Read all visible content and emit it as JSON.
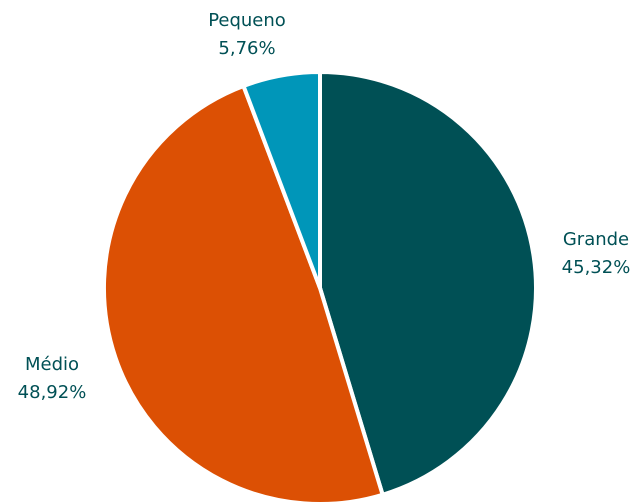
{
  "chart_data": {
    "type": "pie",
    "title": "",
    "categories": [
      "Grande",
      "Médio",
      "Pequeno"
    ],
    "values": [
      45.32,
      48.92,
      5.76
    ],
    "value_labels": [
      "45,32%",
      "48,92%",
      "5,76%"
    ],
    "colors": [
      "#005055",
      "#dc5004",
      "#0096b9"
    ],
    "label_color": "#005055",
    "start_angle_deg": 0,
    "direction": "clockwise",
    "legend": "none"
  }
}
